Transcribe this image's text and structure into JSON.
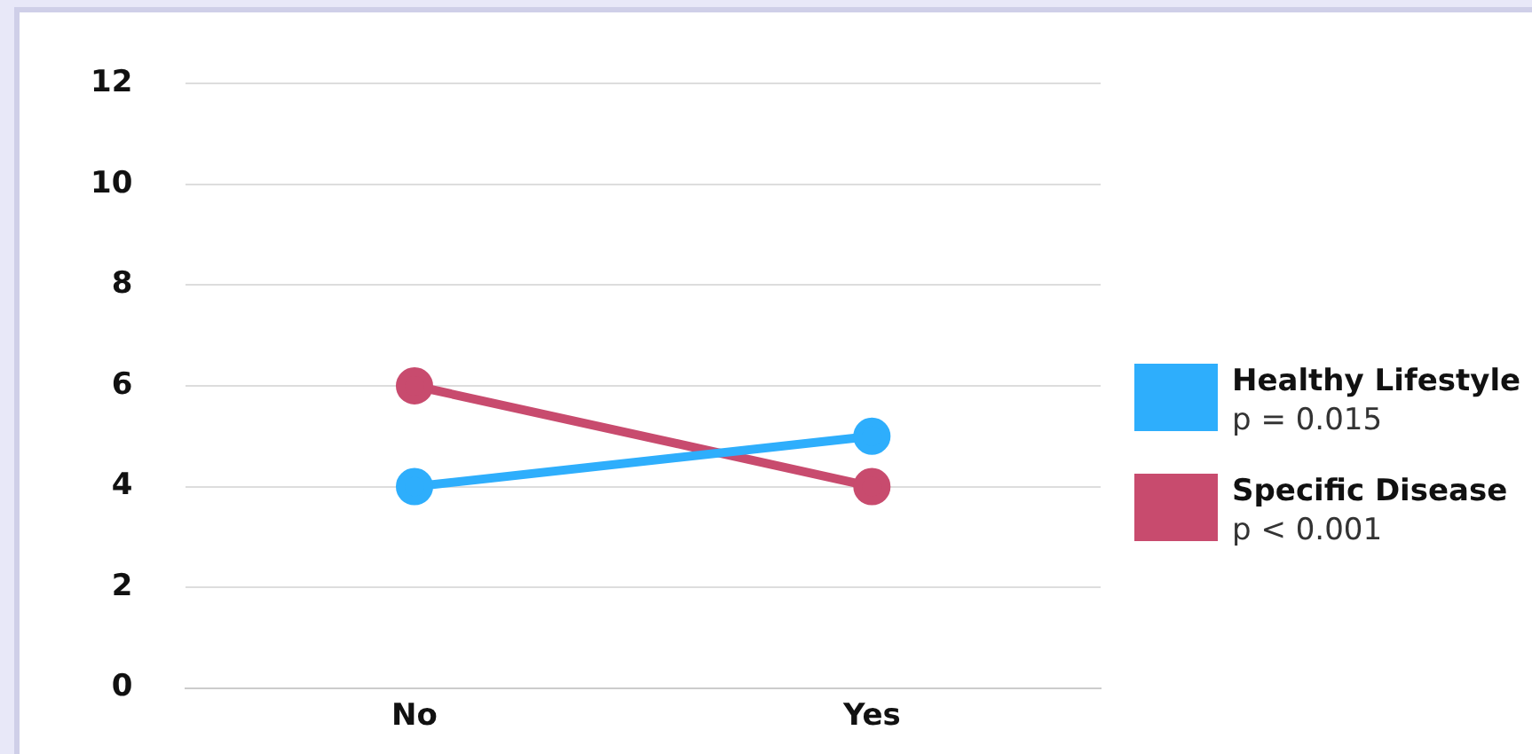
{
  "chart_data": {
    "type": "line",
    "categories": [
      "No",
      "Yes"
    ],
    "series": [
      {
        "name": "Healthy Lifestyle",
        "color": "#2eaefc",
        "values": [
          4,
          5
        ]
      },
      {
        "name": "Specific Disease",
        "color": "#c84b6e",
        "values": [
          6,
          4
        ]
      }
    ],
    "annotations": [
      "p = 0.015",
      "p < 0.001"
    ],
    "ylim": [
      0,
      12
    ],
    "yticks": [
      0,
      2,
      4,
      6,
      8,
      10,
      12
    ],
    "grid": "y",
    "legend": "right",
    "marker": "circle",
    "line_style": "solid"
  }
}
